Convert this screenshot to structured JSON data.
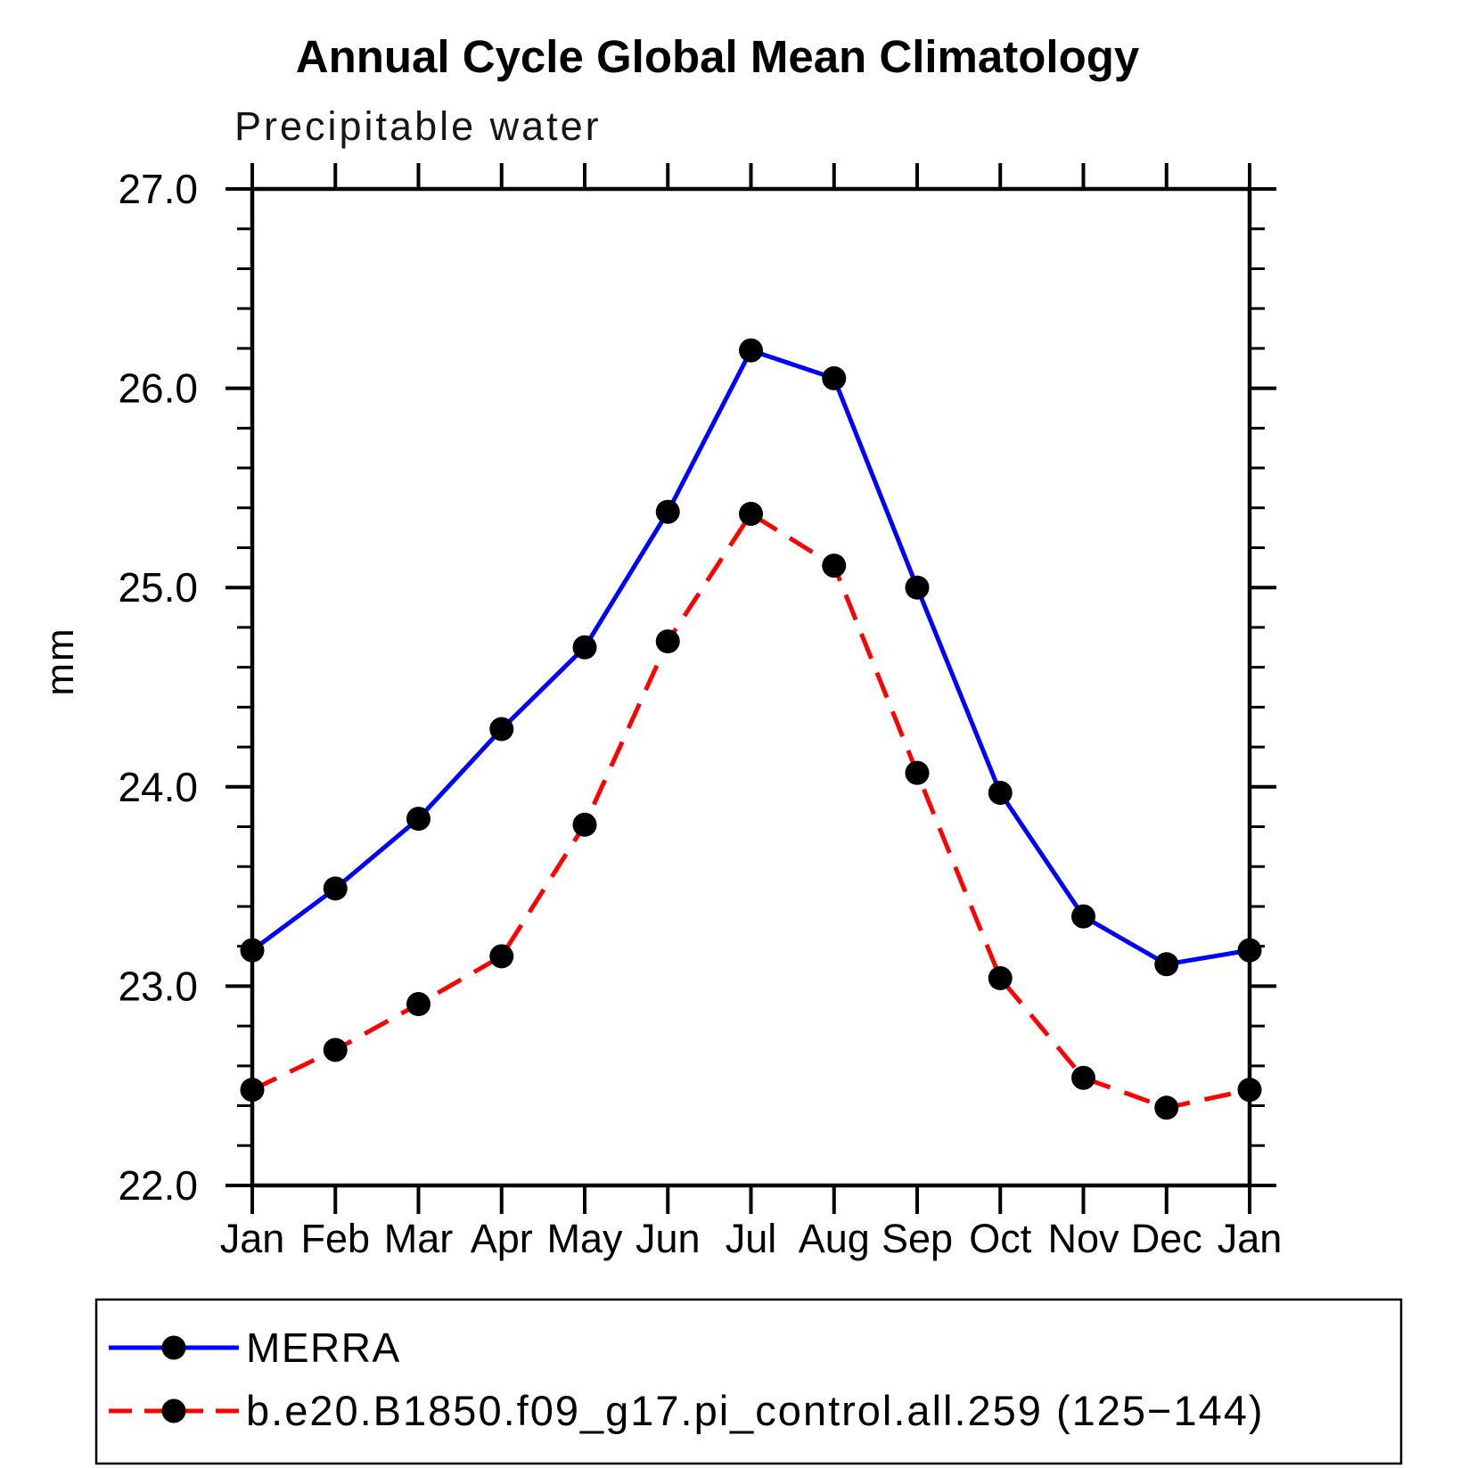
{
  "chart_data": {
    "type": "line",
    "title": "Annual Cycle Global Mean Climatology",
    "subtitle": "Precipitable water",
    "ylabel": "mm",
    "xlabel": "",
    "categories": [
      "Jan",
      "Feb",
      "Mar",
      "Apr",
      "May",
      "Jun",
      "Jul",
      "Aug",
      "Sep",
      "Oct",
      "Nov",
      "Dec",
      "Jan"
    ],
    "ylim": [
      22.0,
      27.0
    ],
    "ytick_interval": 1.0,
    "yminor_interval": 0.2,
    "y_tick_labels": [
      "27.0",
      "26.0",
      "25.0",
      "24.0",
      "23.0",
      "22.0"
    ],
    "grid": false,
    "legend_position": "bottom",
    "marker": "filled-circle",
    "marker_color": "#000000",
    "axis_color": "#000000",
    "background_color": "#ffffff",
    "series": [
      {
        "name": "MERRA",
        "color": "#0000ff",
        "style": "solid",
        "values": [
          23.18,
          23.49,
          23.84,
          24.29,
          24.7,
          25.38,
          26.19,
          26.05,
          25.0,
          23.97,
          23.35,
          23.11,
          23.18
        ]
      },
      {
        "name": "b.e20.B1850.f09_g17.pi_control.all.259 (125−144)",
        "color": "#ff0000",
        "style": "dashed",
        "values": [
          22.48,
          22.68,
          22.91,
          23.15,
          23.81,
          24.73,
          25.37,
          25.11,
          24.07,
          23.04,
          22.54,
          22.39,
          22.48
        ]
      }
    ]
  }
}
